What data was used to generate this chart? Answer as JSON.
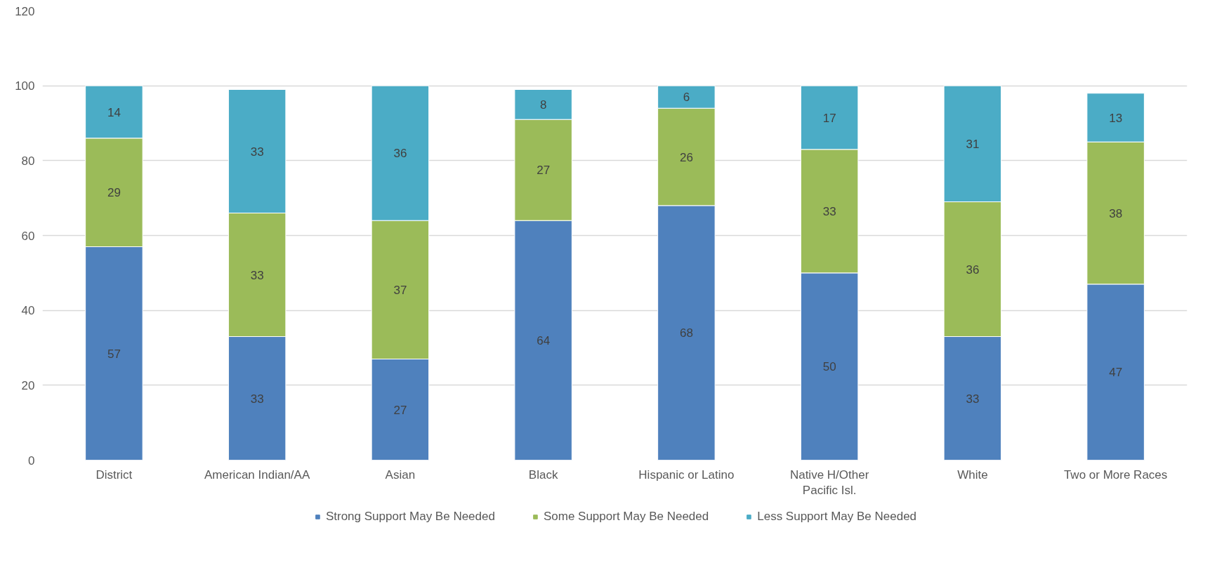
{
  "chart_data": {
    "type": "bar",
    "stacked": true,
    "categories": [
      "District",
      "American Indian/AA",
      "Asian",
      "Black",
      "Hispanic or Latino",
      "Native H/Other\nPacific Isl.",
      "White",
      "Two or More Races"
    ],
    "series": [
      {
        "name": "Strong Support May Be Needed",
        "color": "#4f81bd",
        "values": [
          57,
          33,
          27,
          64,
          68,
          50,
          33,
          47
        ]
      },
      {
        "name": "Some Support May Be Needed",
        "color": "#9bbb59",
        "values": [
          29,
          33,
          37,
          27,
          26,
          33,
          36,
          38
        ]
      },
      {
        "name": "Less Support May Be Needed",
        "color": "#4bacc6",
        "values": [
          14,
          33,
          36,
          8,
          6,
          17,
          31,
          13
        ]
      }
    ],
    "ylim": [
      0,
      120
    ],
    "yticks": [
      0,
      20,
      40,
      60,
      80,
      100,
      120
    ],
    "grid": "y",
    "legend": "bottom",
    "data_labels": true
  }
}
